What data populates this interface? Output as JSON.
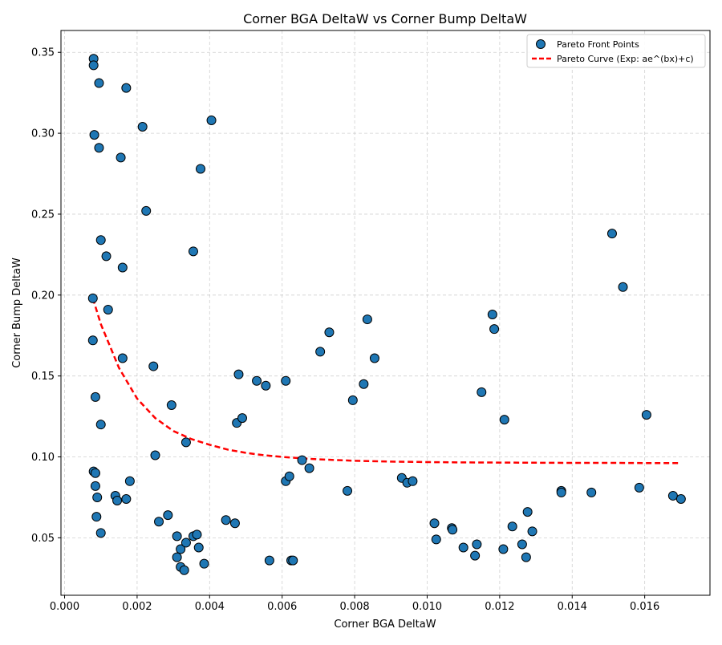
{
  "chart_data": {
    "type": "scatter",
    "title": "Corner BGA DeltaW vs Corner Bump DeltaW",
    "xlabel": "Corner BGA DeltaW",
    "ylabel": "Corner Bump DeltaW",
    "xlim": [
      -0.0001,
      0.0178
    ],
    "ylim": [
      0.0145,
      0.3635
    ],
    "xticks": [
      0.0,
      0.002,
      0.004,
      0.006,
      0.008,
      0.01,
      0.012,
      0.014,
      0.016
    ],
    "xtick_labels": [
      "0.000",
      "0.002",
      "0.004",
      "0.006",
      "0.008",
      "0.010",
      "0.012",
      "0.014",
      "0.016"
    ],
    "yticks": [
      0.05,
      0.1,
      0.15,
      0.2,
      0.25,
      0.3,
      0.35
    ],
    "ytick_labels": [
      "0.05",
      "0.10",
      "0.15",
      "0.20",
      "0.25",
      "0.30",
      "0.35"
    ],
    "grid": true,
    "legend_position": "top-right",
    "series": [
      {
        "name": "Pareto Front Points",
        "kind": "scatter",
        "color": "#1f77b4",
        "edge_color": "#000000",
        "points": [
          [
            0.0008,
            0.346
          ],
          [
            0.0008,
            0.342
          ],
          [
            0.00095,
            0.331
          ],
          [
            0.0017,
            0.328
          ],
          [
            0.00215,
            0.304
          ],
          [
            0.00405,
            0.308
          ],
          [
            0.00082,
            0.299
          ],
          [
            0.00095,
            0.291
          ],
          [
            0.00155,
            0.285
          ],
          [
            0.00375,
            0.278
          ],
          [
            0.00225,
            0.252
          ],
          [
            0.001,
            0.234
          ],
          [
            0.00115,
            0.224
          ],
          [
            0.0016,
            0.217
          ],
          [
            0.00355,
            0.227
          ],
          [
            0.0012,
            0.191
          ],
          [
            0.00078,
            0.198
          ],
          [
            0.00078,
            0.172
          ],
          [
            0.0016,
            0.161
          ],
          [
            0.00245,
            0.156
          ],
          [
            0.00085,
            0.137
          ],
          [
            0.00295,
            0.132
          ],
          [
            0.001,
            0.12
          ],
          [
            0.00335,
            0.109
          ],
          [
            0.0025,
            0.101
          ],
          [
            0.0008,
            0.091
          ],
          [
            0.00085,
            0.09
          ],
          [
            0.0018,
            0.085
          ],
          [
            0.00085,
            0.082
          ],
          [
            0.0009,
            0.075
          ],
          [
            0.0014,
            0.076
          ],
          [
            0.00145,
            0.073
          ],
          [
            0.0017,
            0.074
          ],
          [
            0.00088,
            0.063
          ],
          [
            0.001,
            0.053
          ],
          [
            0.0026,
            0.06
          ],
          [
            0.00285,
            0.064
          ],
          [
            0.0031,
            0.051
          ],
          [
            0.0032,
            0.043
          ],
          [
            0.00335,
            0.047
          ],
          [
            0.00355,
            0.051
          ],
          [
            0.00365,
            0.052
          ],
          [
            0.0037,
            0.044
          ],
          [
            0.0031,
            0.038
          ],
          [
            0.0032,
            0.032
          ],
          [
            0.0033,
            0.03
          ],
          [
            0.00385,
            0.034
          ],
          [
            0.00445,
            0.061
          ],
          [
            0.0047,
            0.059
          ],
          [
            0.00475,
            0.121
          ],
          [
            0.0048,
            0.151
          ],
          [
            0.0049,
            0.124
          ],
          [
            0.0053,
            0.147
          ],
          [
            0.00555,
            0.144
          ],
          [
            0.0061,
            0.147
          ],
          [
            0.0061,
            0.085
          ],
          [
            0.0062,
            0.088
          ],
          [
            0.00655,
            0.098
          ],
          [
            0.00675,
            0.093
          ],
          [
            0.00565,
            0.036
          ],
          [
            0.00625,
            0.036
          ],
          [
            0.0063,
            0.036
          ],
          [
            0.00705,
            0.165
          ],
          [
            0.0073,
            0.177
          ],
          [
            0.0078,
            0.079
          ],
          [
            0.00795,
            0.135
          ],
          [
            0.00825,
            0.145
          ],
          [
            0.00835,
            0.185
          ],
          [
            0.00855,
            0.161
          ],
          [
            0.0093,
            0.087
          ],
          [
            0.00945,
            0.084
          ],
          [
            0.0096,
            0.085
          ],
          [
            0.0102,
            0.059
          ],
          [
            0.01025,
            0.049
          ],
          [
            0.01068,
            0.056
          ],
          [
            0.0107,
            0.055
          ],
          [
            0.011,
            0.044
          ],
          [
            0.01132,
            0.039
          ],
          [
            0.01137,
            0.046
          ],
          [
            0.0115,
            0.14
          ],
          [
            0.0118,
            0.188
          ],
          [
            0.01185,
            0.179
          ],
          [
            0.0121,
            0.043
          ],
          [
            0.01213,
            0.123
          ],
          [
            0.01235,
            0.057
          ],
          [
            0.01262,
            0.046
          ],
          [
            0.01273,
            0.038
          ],
          [
            0.01277,
            0.066
          ],
          [
            0.0129,
            0.054
          ],
          [
            0.0137,
            0.079
          ],
          [
            0.0137,
            0.078
          ],
          [
            0.01453,
            0.078
          ],
          [
            0.0151,
            0.238
          ],
          [
            0.0154,
            0.205
          ],
          [
            0.01585,
            0.081
          ],
          [
            0.01605,
            0.126
          ],
          [
            0.01678,
            0.076
          ],
          [
            0.017,
            0.074
          ]
        ]
      },
      {
        "name": "Pareto Curve (Exp: ae^(bx)+c)",
        "kind": "line",
        "color": "#ff0000",
        "dashed": true,
        "x": [
          0.00078,
          0.001,
          0.0015,
          0.002,
          0.0025,
          0.003,
          0.0035,
          0.004,
          0.0045,
          0.005,
          0.0055,
          0.006,
          0.0065,
          0.007,
          0.008,
          0.009,
          0.01,
          0.011,
          0.012,
          0.013,
          0.014,
          0.015,
          0.016,
          0.017
        ],
        "y": [
          0.198,
          0.182,
          0.155,
          0.136,
          0.124,
          0.116,
          0.111,
          0.1075,
          0.1045,
          0.1025,
          0.101,
          0.1,
          0.0992,
          0.0985,
          0.0976,
          0.0971,
          0.0968,
          0.0966,
          0.0965,
          0.0964,
          0.0963,
          0.0963,
          0.0962,
          0.0962
        ]
      }
    ]
  }
}
